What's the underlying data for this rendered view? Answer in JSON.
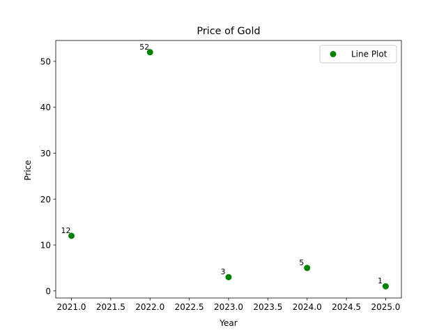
{
  "chart_data": {
    "type": "scatter",
    "title": "Price of Gold",
    "xlabel": "Year",
    "ylabel": "Price",
    "xlim": [
      2020.8,
      2025.2
    ],
    "ylim": [
      -1.55,
      54.55
    ],
    "xticks": [
      2021.0,
      2021.5,
      2022.0,
      2022.5,
      2023.0,
      2023.5,
      2024.0,
      2024.5,
      2025.0
    ],
    "xtick_labels": [
      "2021.0",
      "2021.5",
      "2022.0",
      "2022.5",
      "2023.0",
      "2023.5",
      "2024.0",
      "2024.5",
      "2025.0"
    ],
    "yticks": [
      0,
      10,
      20,
      30,
      40,
      50
    ],
    "ytick_labels": [
      "0",
      "10",
      "20",
      "30",
      "40",
      "50"
    ],
    "grid": false,
    "legend_position": "top-right",
    "series": [
      {
        "name": "Line Plot",
        "color": "#008000",
        "x": [
          2021,
          2022,
          2023,
          2024,
          2025
        ],
        "y": [
          12,
          52,
          3,
          5,
          1
        ],
        "data_labels": [
          "12",
          "52",
          "3",
          "5",
          "1"
        ]
      }
    ]
  }
}
